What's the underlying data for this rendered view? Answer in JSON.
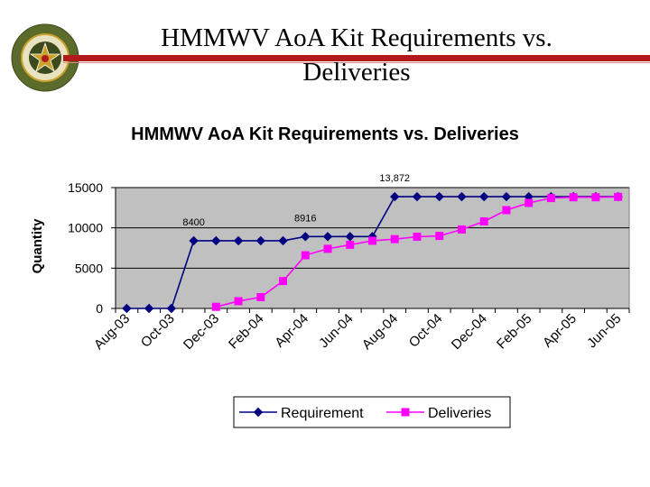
{
  "slide": {
    "title_line_1": "HMMWV AoA Kit Requirements vs.",
    "title_line_2": "Deliveries",
    "seal_text_top": "DEPUTY CHIEF OF STAFF",
    "seal_text_bottom": "G 8"
  },
  "colors": {
    "title_bar": "#b11a1a",
    "plot_background": "#c0c0c0",
    "requirement": "#000080",
    "deliveries": "#ff00ff",
    "seal_green": "#5a6b2c",
    "seal_gold": "#c9a227"
  },
  "chart_data": {
    "type": "line",
    "title": "HMMWV AoA Kit Requirements vs. Deliveries",
    "ylabel": "Quantity",
    "xlabel": "",
    "ylim": [
      0,
      15000
    ],
    "yticks": [
      0,
      5000,
      10000,
      15000
    ],
    "grid": true,
    "legend": "bottom",
    "categories": [
      "Aug-03",
      "Sep-03",
      "Oct-03",
      "Nov-03",
      "Dec-03",
      "Jan-04",
      "Feb-04",
      "Mar-04",
      "Apr-04",
      "May-04",
      "Jun-04",
      "Jul-04",
      "Aug-04",
      "Sep-04",
      "Oct-04",
      "Nov-04",
      "Dec-04",
      "Jan-05",
      "Feb-05",
      "Mar-05",
      "Apr-05",
      "May-05",
      "Jun-05"
    ],
    "tick_labels": [
      "Aug-03",
      "Oct-03",
      "Dec-03",
      "Feb-04",
      "Apr-04",
      "Jun-04",
      "Aug-04",
      "Oct-04",
      "Dec-04",
      "Feb-05",
      "Apr-05",
      "Jun-05"
    ],
    "series": [
      {
        "name": "Requirement",
        "marker": "diamond",
        "values": [
          0,
          0,
          0,
          8400,
          8400,
          8400,
          8400,
          8400,
          8916,
          8916,
          8916,
          8916,
          13872,
          13872,
          13872,
          13872,
          13872,
          13872,
          13872,
          13872,
          13872,
          13872,
          13872
        ]
      },
      {
        "name": "Deliveries",
        "marker": "square",
        "values": [
          null,
          null,
          null,
          null,
          200,
          900,
          1400,
          3400,
          6600,
          7400,
          7900,
          8400,
          8600,
          8900,
          9000,
          9800,
          10800,
          12200,
          13100,
          13700,
          13800,
          13800,
          13850
        ]
      }
    ],
    "annotations": [
      {
        "series": 0,
        "index": 3,
        "text": "8400"
      },
      {
        "series": 0,
        "index": 8,
        "text": "8916"
      },
      {
        "series": 0,
        "index": 12,
        "text": "13,872"
      }
    ]
  }
}
